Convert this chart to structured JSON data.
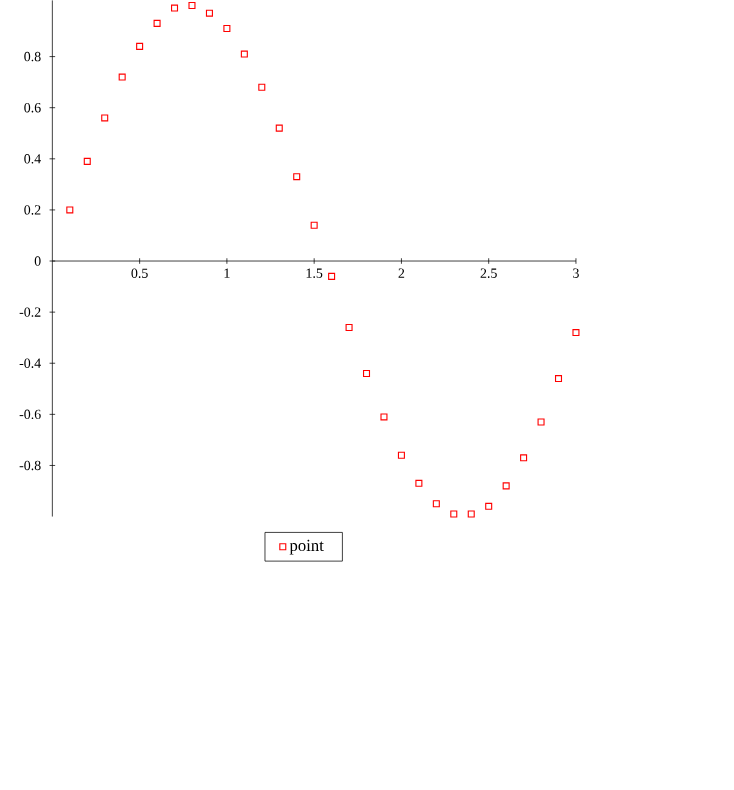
{
  "chart_data": {
    "type": "scatter",
    "x": [
      0.1,
      0.2,
      0.3,
      0.4,
      0.5,
      0.6,
      0.7,
      0.8,
      0.9,
      1.0,
      1.1,
      1.2,
      1.3,
      1.4,
      1.5,
      1.6,
      1.7,
      1.8,
      1.9,
      2.0,
      2.1,
      2.2,
      2.3,
      2.4,
      2.5,
      2.6,
      2.7,
      2.8,
      2.9,
      3.0
    ],
    "series": [
      {
        "name": "point",
        "color": "#ff0000",
        "values": [
          0.2,
          0.39,
          0.56,
          0.72,
          0.84,
          0.93,
          0.99,
          1.0,
          0.97,
          0.91,
          0.81,
          0.68,
          0.52,
          0.33,
          0.14,
          -0.06,
          -0.26,
          -0.44,
          -0.61,
          -0.76,
          -0.87,
          -0.95,
          -0.99,
          -0.99,
          -0.96,
          -0.88,
          -0.77,
          -0.63,
          -0.46,
          -0.28
        ]
      }
    ],
    "xlim": [
      0,
      3
    ],
    "ylim": [
      -1.0,
      1.02
    ],
    "xticks": [
      0.5,
      1,
      1.5,
      2,
      2.5,
      3
    ],
    "yticks": [
      -0.8,
      -0.6,
      -0.4,
      -0.2,
      0,
      0.2,
      0.4,
      0.6,
      0.8
    ],
    "marker": "square",
    "legend": "bottom",
    "grid": false
  }
}
